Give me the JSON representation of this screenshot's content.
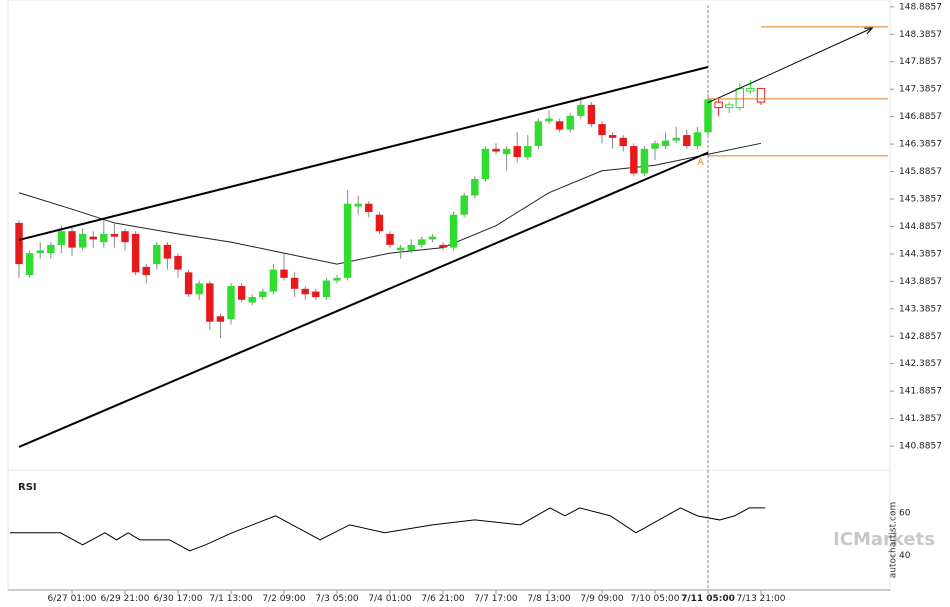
{
  "chart_data": {
    "type": "candlestick",
    "x": [
      0,
      1,
      2,
      3,
      4,
      5,
      6,
      7,
      8,
      9,
      10,
      11,
      12,
      13,
      14,
      15,
      16,
      17,
      18,
      19,
      20,
      21,
      22,
      23,
      24,
      25,
      26,
      27,
      28,
      29,
      30,
      31,
      32,
      33,
      34,
      35,
      36,
      37,
      38,
      39,
      40,
      41,
      42,
      43,
      44,
      45,
      46,
      47,
      48,
      49,
      50,
      51,
      52,
      53,
      54,
      55,
      56,
      57,
      58,
      59,
      60,
      61,
      62,
      63,
      64,
      65,
      66,
      67,
      68,
      69,
      70
    ],
    "open": [
      144.95,
      144.0,
      144.4,
      144.4,
      144.55,
      144.8,
      144.5,
      144.7,
      144.6,
      144.75,
      144.8,
      144.75,
      144.15,
      144.2,
      144.55,
      144.35,
      144.05,
      143.65,
      143.85,
      143.25,
      143.2,
      143.8,
      143.5,
      143.6,
      143.7,
      144.1,
      143.95,
      143.75,
      143.7,
      143.6,
      143.9,
      143.95,
      145.25,
      145.3,
      145.1,
      144.75,
      144.45,
      144.45,
      144.55,
      144.65,
      144.55,
      144.5,
      145.1,
      145.45,
      145.75,
      146.3,
      146.2,
      146.35,
      146.15,
      146.35,
      146.8,
      146.8,
      146.65,
      146.9,
      147.1,
      146.75,
      146.55,
      146.5,
      146.35,
      145.85,
      146.3,
      146.35,
      146.45,
      146.55,
      146.35,
      146.6,
      147.15,
      147.05,
      147.05,
      147.35,
      147.4
    ],
    "high": [
      145.0,
      144.45,
      144.6,
      144.6,
      144.9,
      144.9,
      144.85,
      144.8,
      145.05,
      144.95,
      144.85,
      144.8,
      144.2,
      144.6,
      144.6,
      144.4,
      144.1,
      143.9,
      143.9,
      143.3,
      143.85,
      143.85,
      143.65,
      143.75,
      144.2,
      144.4,
      144.05,
      143.8,
      143.75,
      143.95,
      144.0,
      145.55,
      145.45,
      145.35,
      145.15,
      144.8,
      144.55,
      144.65,
      144.7,
      144.75,
      144.6,
      145.15,
      145.5,
      145.8,
      146.35,
      146.4,
      146.35,
      146.6,
      146.55,
      146.85,
      147.0,
      146.85,
      146.95,
      147.25,
      147.15,
      146.8,
      146.6,
      146.55,
      146.4,
      146.35,
      146.45,
      146.6,
      146.7,
      146.65,
      146.7,
      147.3,
      147.2,
      147.15,
      147.5,
      147.55,
      147.4
    ],
    "low": [
      143.95,
      143.95,
      144.3,
      144.3,
      144.4,
      144.35,
      144.45,
      144.5,
      144.5,
      144.5,
      144.45,
      144.0,
      143.85,
      144.1,
      144.1,
      143.95,
      143.6,
      143.55,
      143.0,
      142.85,
      143.1,
      143.5,
      143.45,
      143.55,
      143.65,
      143.9,
      143.6,
      143.55,
      143.55,
      143.55,
      143.85,
      143.9,
      145.1,
      145.05,
      144.75,
      144.5,
      144.3,
      144.4,
      144.5,
      144.6,
      144.45,
      144.45,
      145.05,
      145.4,
      145.7,
      146.2,
      145.9,
      146.05,
      146.1,
      146.3,
      146.75,
      146.6,
      146.6,
      146.85,
      146.7,
      146.4,
      146.3,
      146.25,
      145.8,
      145.8,
      146.1,
      146.3,
      146.4,
      146.3,
      146.3,
      146.55,
      146.9,
      146.95,
      147.0,
      147.3,
      147.1
    ],
    "close": [
      144.2,
      144.4,
      144.45,
      144.55,
      144.8,
      144.5,
      144.75,
      144.65,
      144.75,
      144.7,
      144.6,
      144.05,
      144.0,
      144.55,
      144.3,
      144.1,
      143.65,
      143.85,
      143.15,
      143.15,
      143.8,
      143.55,
      143.6,
      143.7,
      144.1,
      143.95,
      143.75,
      143.65,
      143.6,
      143.9,
      143.95,
      145.3,
      145.3,
      145.15,
      144.8,
      144.55,
      144.5,
      144.55,
      144.65,
      144.7,
      144.5,
      145.1,
      145.45,
      145.75,
      146.3,
      146.25,
      146.3,
      146.15,
      146.35,
      146.8,
      146.85,
      146.65,
      146.9,
      147.1,
      146.75,
      146.55,
      146.5,
      146.35,
      145.85,
      146.3,
      146.4,
      146.45,
      146.5,
      146.35,
      146.6,
      147.2,
      147.05,
      147.1,
      147.4,
      147.4,
      147.15
    ],
    "up_color": "#2fdc2f",
    "down_color": "#e8191a",
    "hollow_from": 66,
    "moving_average": {
      "color": "#222222",
      "x": [
        0,
        5,
        9,
        15,
        20,
        25,
        30,
        35,
        40,
        45,
        50,
        55,
        60,
        65,
        70
      ],
      "values": [
        145.5,
        145.2,
        144.95,
        144.75,
        144.6,
        144.4,
        144.2,
        144.4,
        144.5,
        144.9,
        145.5,
        145.9,
        146.0,
        146.2,
        146.4
      ]
    },
    "trendlines": [
      {
        "color": "#000000",
        "x": [
          0,
          65
        ],
        "values": [
          144.64,
          147.79
        ]
      },
      {
        "color": "#000000",
        "x": [
          0,
          65
        ],
        "values": [
          140.87,
          146.23
        ]
      }
    ],
    "arrow": {
      "color": "#000000",
      "x": [
        65,
        80.5
      ],
      "values": [
        147.14,
        148.5
      ]
    },
    "levels": [
      {
        "color": "#e07a1f",
        "x": [
          70,
          82
        ],
        "value": 148.52
      },
      {
        "color": "#e07a1f",
        "x": [
          65,
          82
        ],
        "value": 147.21
      },
      {
        "color": "#e07a1f",
        "x": [
          65,
          82
        ],
        "value": 146.17
      }
    ],
    "marker_x": 65,
    "annotation": {
      "text": "A",
      "x": 64.3,
      "value": 146.05,
      "color": "#e07a1f"
    },
    "xlim": [
      -1.04,
      82.17
    ],
    "ylim": [
      140.45,
      149.01
    ],
    "yticks": [
      140.8857,
      141.3857,
      141.8857,
      142.3857,
      142.8857,
      143.3857,
      143.8857,
      144.3857,
      144.8857,
      145.3857,
      145.8857,
      146.3857,
      146.8857,
      147.3857,
      147.8857,
      148.3857,
      148.8857
    ],
    "xticks": [
      5,
      10,
      15,
      20,
      25,
      30,
      35,
      40,
      45,
      50,
      55,
      60,
      65,
      70
    ],
    "xtick_labels": [
      "6/27 01:00",
      "6/29 21:00",
      "6/30 17:00",
      "7/1 13:00",
      "7/2 09:00",
      "7/3 05:00",
      "7/4 01:00",
      "7/6 21:00",
      "7/7 17:00",
      "7/8 13:00",
      "7/9 09:00",
      "7/10 05:00",
      "7/11 05:00",
      "7/13 21:00"
    ],
    "highlight_tick": 12,
    "rsi": {
      "title": "RSI",
      "color": "#000000",
      "x": [
        -0.85,
        3.9,
        6,
        8.1,
        9.2,
        10.3,
        11.4,
        14.2,
        16.1,
        17.6,
        20.1,
        24.2,
        28.4,
        31.2,
        34.5,
        39,
        43,
        47.3,
        50.1,
        51.5,
        52.9,
        55.8,
        58.2,
        62.4,
        64,
        66.1,
        67.5,
        68.9,
        70.4
      ],
      "values": [
        50.7,
        50.7,
        45.1,
        50.7,
        47.4,
        50.7,
        47.4,
        47.4,
        42.3,
        45.1,
        50.7,
        58.6,
        47.4,
        54.4,
        50.7,
        54.4,
        56.7,
        54.4,
        62.3,
        58.6,
        62.3,
        58.6,
        50.7,
        62.3,
        58.6,
        56.7,
        58.6,
        62.3,
        62.3
      ],
      "ylim": [
        24,
        80
      ],
      "yticks": [
        40,
        60
      ]
    },
    "watermark": "ICMarkets",
    "source": "autochartist.com"
  }
}
